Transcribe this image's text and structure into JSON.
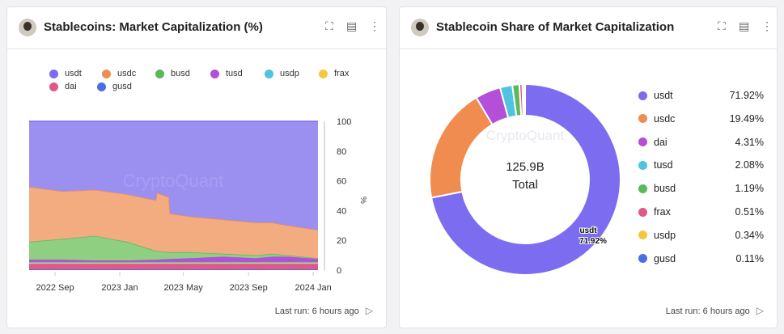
{
  "left_card": {
    "title": "Stablecoins: Market Capitalization (%)",
    "footer": "Last run: 6 hours ago",
    "watermark": "CryptoQuant",
    "y_unit": "%"
  },
  "right_card": {
    "title": "Stablecoin Share of Market Capitalization",
    "footer": "Last run: 6 hours ago",
    "watermark": "CryptoQuant",
    "center_value": "125.9B",
    "center_label": "Total",
    "slice_label_name": "usdt",
    "slice_label_value": "71.92%"
  },
  "icons": [
    "fullscreen-icon",
    "console-icon",
    "more-icon",
    "play-icon"
  ],
  "colors": {
    "usdt": "#7b6cf0",
    "usdc": "#f08c4f",
    "busd": "#5cb85c",
    "tusd": "#b34fd8",
    "usdp": "#4fc3e0",
    "frax": "#f0c93f",
    "dai": "#e0588a",
    "gusd": "#4a6fe3"
  },
  "chart_data": [
    {
      "type": "area",
      "stacked": true,
      "title": "Stablecoins: Market Capitalization (%)",
      "ylabel": "%",
      "ylim": [
        0,
        100
      ],
      "yticks": [
        "0",
        "20",
        "40",
        "60",
        "80",
        "100"
      ],
      "xticks": [
        "2022 Sep",
        "2023 Jan",
        "2023 May",
        "2023 Sep",
        "2024 Jan"
      ],
      "legend": "top",
      "legend_entries": [
        {
          "name": "usdt",
          "color": "#7b6cf0"
        },
        {
          "name": "usdc",
          "color": "#f08c4f"
        },
        {
          "name": "busd",
          "color": "#5cb85c"
        },
        {
          "name": "tusd",
          "color": "#b34fd8"
        },
        {
          "name": "usdp",
          "color": "#4fc3e0"
        },
        {
          "name": "frax",
          "color": "#f0c93f"
        },
        {
          "name": "dai",
          "color": "#e0588a"
        },
        {
          "name": "gusd",
          "color": "#4a6fe3"
        }
      ],
      "x": [
        "2022-07-14",
        "2022-09-15",
        "2022-11-15",
        "2023-01-15",
        "2023-03-10",
        "2023-03-12",
        "2023-04-04",
        "2023-04-06",
        "2023-05-15",
        "2023-07-15",
        "2023-09-15",
        "2023-10-15",
        "2023-11-15",
        "2024-01-10"
      ],
      "series": [
        {
          "name": "gusd",
          "values": [
            0.5,
            0.5,
            0.5,
            0.5,
            0.5,
            0.5,
            0.5,
            0.5,
            0.5,
            0.5,
            0.5,
            0.5,
            0.5,
            0.5
          ]
        },
        {
          "name": "dai",
          "values": [
            3.8,
            3.8,
            3.8,
            3.8,
            3.8,
            3.8,
            3.8,
            3.8,
            3.8,
            3.8,
            3.8,
            3.8,
            3.8,
            3.8
          ]
        },
        {
          "name": "frax",
          "values": [
            0.6,
            0.6,
            0.6,
            0.6,
            0.6,
            0.6,
            0.6,
            0.6,
            0.6,
            0.6,
            0.6,
            0.6,
            0.6,
            0.6
          ]
        },
        {
          "name": "usdp",
          "values": [
            0.6,
            0.6,
            0.6,
            0.6,
            0.6,
            0.6,
            0.6,
            0.6,
            0.6,
            0.6,
            0.6,
            0.6,
            0.6,
            0.6
          ]
        },
        {
          "name": "tusd",
          "values": [
            1.5,
            1.5,
            1,
            1,
            1.5,
            1.5,
            2,
            2,
            2.5,
            3.5,
            2.5,
            3.5,
            3.5,
            2
          ]
        },
        {
          "name": "busd",
          "values": [
            12,
            14,
            16.5,
            12.5,
            6,
            6,
            4.5,
            4.5,
            4,
            2,
            2,
            2,
            1,
            0.5
          ]
        },
        {
          "name": "usdc",
          "values": [
            37,
            32,
            31,
            32,
            34,
            39,
            37,
            26,
            24,
            23,
            22,
            21,
            20,
            19
          ]
        },
        {
          "name": "usdt",
          "values": [
            44,
            47,
            46,
            49,
            53,
            48,
            51,
            62,
            64,
            66,
            68,
            68,
            70,
            73
          ]
        }
      ]
    },
    {
      "type": "pie",
      "donut": true,
      "total": "125.9B",
      "slices": [
        {
          "name": "usdt",
          "value": 71.92,
          "label": "71.92%",
          "color": "#7b6cf0"
        },
        {
          "name": "usdc",
          "value": 19.49,
          "label": "19.49%",
          "color": "#f08c4f"
        },
        {
          "name": "dai",
          "value": 4.31,
          "label": "4.31%",
          "color": "#b34fd8"
        },
        {
          "name": "tusd",
          "value": 2.08,
          "label": "2.08%",
          "color": "#4fc3e0"
        },
        {
          "name": "busd",
          "value": 1.19,
          "label": "1.19%",
          "color": "#5cb85c"
        },
        {
          "name": "frax",
          "value": 0.51,
          "label": "0.51%",
          "color": "#e0588a"
        },
        {
          "name": "usdp",
          "value": 0.34,
          "label": "0.34%",
          "color": "#f0c93f"
        },
        {
          "name": "gusd",
          "value": 0.11,
          "label": "0.11%",
          "color": "#4a6fe3"
        }
      ]
    }
  ]
}
